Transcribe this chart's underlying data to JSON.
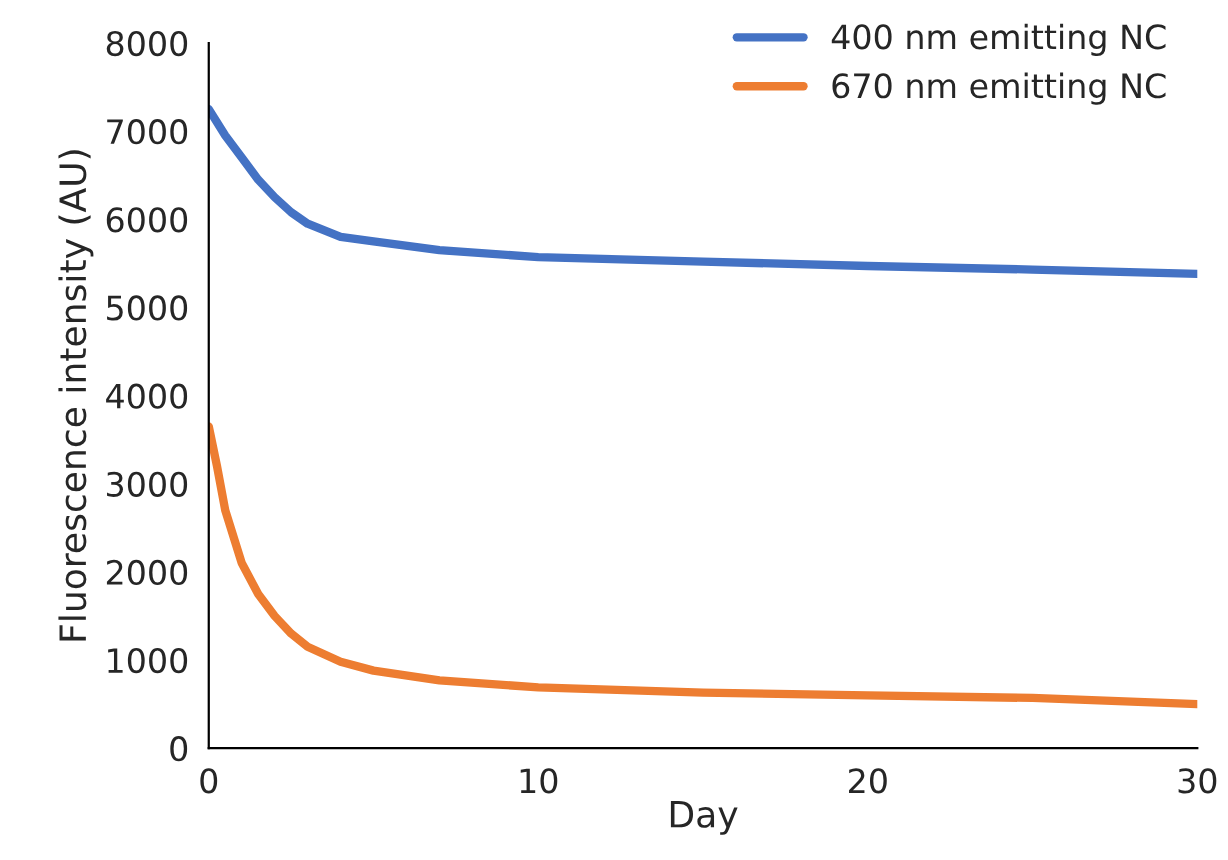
{
  "chart_data": {
    "type": "line",
    "xlabel": "Day",
    "ylabel": "Fluorescence intensity (AU)",
    "xlim": [
      0,
      30
    ],
    "xticks": [
      0,
      10,
      20,
      30
    ],
    "ylim": [
      0,
      8000
    ],
    "yticks": [
      0,
      1000,
      2000,
      3000,
      4000,
      5000,
      6000,
      7000,
      8000
    ],
    "grid": false,
    "legend": "top right",
    "line_style": "solid",
    "marker": "none",
    "series": [
      {
        "name": "400 nm emitting NC",
        "color": "#4472c4",
        "x": [
          0,
          0.5,
          1,
          1.5,
          2,
          2.5,
          3,
          4,
          5,
          7,
          10,
          15,
          20,
          25,
          30
        ],
        "values": [
          7250,
          6950,
          6700,
          6450,
          6250,
          6080,
          5950,
          5800,
          5750,
          5650,
          5570,
          5520,
          5470,
          5430,
          5380
        ]
      },
      {
        "name": "670 nm emitting NC",
        "color": "#ed7d31",
        "x": [
          0,
          0.25,
          0.5,
          1,
          1.5,
          2,
          2.5,
          3,
          4,
          5,
          7,
          10,
          15,
          20,
          25,
          30
        ],
        "values": [
          3650,
          3200,
          2700,
          2100,
          1750,
          1500,
          1300,
          1150,
          980,
          880,
          770,
          690,
          630,
          600,
          570,
          500
        ]
      }
    ]
  }
}
